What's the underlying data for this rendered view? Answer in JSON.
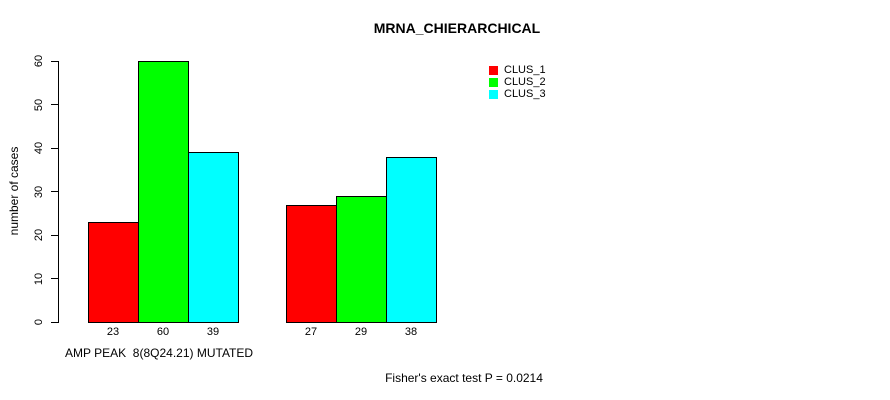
{
  "title": "MRNA_CHIERARCHICAL",
  "footer": "Fisher's exact test P = 0.0214",
  "chart_data": {
    "type": "bar",
    "title": "MRNA_CHIERARCHICAL",
    "xlabel": "AMP PEAK  8(8Q24.21) MUTATED",
    "ylabel": "number of cases",
    "categories": [
      "AMP PEAK 8(8Q24.21) MUTATED",
      ""
    ],
    "series": [
      {
        "name": "CLUS_1",
        "color": "#ff0000",
        "values": [
          23,
          27
        ]
      },
      {
        "name": "CLUS_2",
        "color": "#00ff00",
        "values": [
          60,
          29
        ]
      },
      {
        "name": "CLUS_3",
        "color": "#00ffff",
        "values": [
          39,
          38
        ]
      }
    ],
    "bar_value_labels": [
      [
        23,
        60,
        39
      ],
      [
        27,
        29,
        38
      ]
    ],
    "ylim": [
      0,
      60
    ],
    "yticks": [
      0,
      10,
      20,
      30,
      40,
      50,
      60
    ],
    "grid": false,
    "legend_position": "top-right",
    "legend_entries": [
      "CLUS_1",
      "CLUS_2",
      "CLUS_3"
    ],
    "annotation": "Fisher's exact test P = 0.0214"
  }
}
